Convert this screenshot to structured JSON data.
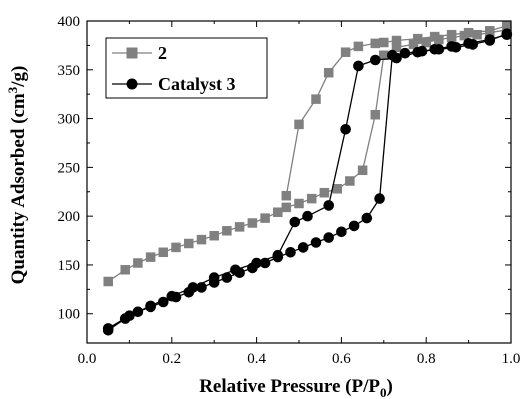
{
  "chart_data": {
    "type": "scatter",
    "xlabel": "Relative Pressure (P/P0)",
    "xlabel_main": "Relative Pressure (P/P",
    "xlabel_sub": "0",
    "xlabel_end": ")",
    "ylabel": "Quantity Adsorbed (cm3/g)",
    "ylabel_main": "Quantity Adsorbed (cm",
    "ylabel_sup": "3",
    "ylabel_end": "/g)",
    "xlim": [
      0.0,
      1.0
    ],
    "ylim": [
      70,
      400
    ],
    "xticks": [
      "0.0",
      "0.2",
      "0.4",
      "0.6",
      "0.8",
      "1.0"
    ],
    "yticks": [
      "100",
      "150",
      "200",
      "250",
      "300",
      "350",
      "400"
    ],
    "legend_position": "top-left",
    "grid": false,
    "series": [
      {
        "name": "2",
        "color": "#808080",
        "marker": "square",
        "adsorption": {
          "x": [
            0.05,
            0.09,
            0.12,
            0.15,
            0.18,
            0.21,
            0.24,
            0.27,
            0.3,
            0.33,
            0.36,
            0.39,
            0.42,
            0.45,
            0.47,
            0.5,
            0.53,
            0.56,
            0.59,
            0.62,
            0.65,
            0.68,
            0.7,
            0.73,
            0.77,
            0.8,
            0.83,
            0.86,
            0.89,
            0.92,
            0.95,
            0.99
          ],
          "y": [
            133,
            145,
            152,
            158,
            163,
            168,
            172,
            176,
            180,
            185,
            189,
            193,
            198,
            204,
            209,
            213,
            218,
            224,
            228,
            236,
            247,
            304,
            365,
            373,
            376,
            378,
            381,
            383,
            385,
            386,
            388,
            391
          ]
        },
        "desorption": {
          "x": [
            0.99,
            0.95,
            0.9,
            0.86,
            0.82,
            0.78,
            0.73,
            0.7,
            0.68,
            0.64,
            0.61,
            0.57,
            0.54,
            0.5,
            0.47
          ],
          "y": [
            395,
            390,
            388,
            386,
            384,
            382,
            380,
            378,
            377,
            374,
            368,
            347,
            320,
            294,
            221
          ]
        }
      },
      {
        "name": "Catalyst 3",
        "color": "#000000",
        "marker": "circle",
        "adsorption": {
          "x": [
            0.05,
            0.09,
            0.12,
            0.15,
            0.18,
            0.21,
            0.24,
            0.27,
            0.3,
            0.33,
            0.36,
            0.39,
            0.42,
            0.45,
            0.48,
            0.51,
            0.54,
            0.57,
            0.6,
            0.63,
            0.66,
            0.69,
            0.72,
            0.75,
            0.79,
            0.83,
            0.87,
            0.91,
            0.95,
            0.99
          ],
          "y": [
            83,
            95,
            102,
            107,
            112,
            117,
            122,
            127,
            132,
            137,
            142,
            147,
            152,
            158,
            163,
            168,
            173,
            178,
            184,
            190,
            198,
            218,
            365,
            367,
            369,
            371,
            373,
            376,
            380,
            387
          ]
        },
        "desorption": {
          "x": [
            0.99,
            0.95,
            0.9,
            0.86,
            0.82,
            0.78,
            0.73,
            0.68,
            0.64,
            0.61,
            0.57,
            0.52,
            0.49,
            0.45,
            0.4,
            0.35,
            0.3,
            0.25,
            0.2,
            0.15,
            0.1,
            0.05
          ],
          "y": [
            386,
            381,
            377,
            374,
            371,
            368,
            362,
            360,
            354,
            289,
            211,
            200,
            194,
            160,
            152,
            145,
            137,
            127,
            118,
            108,
            98,
            85
          ]
        }
      }
    ]
  }
}
